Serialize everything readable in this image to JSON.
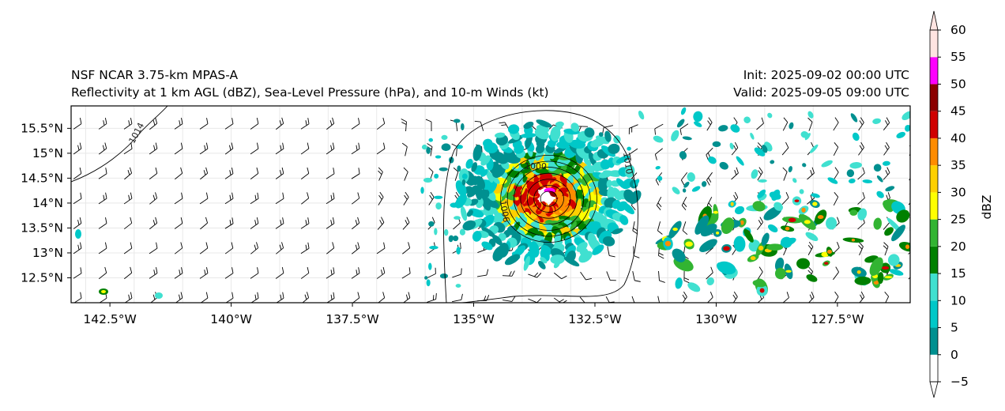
{
  "header": {
    "model_title": "NSF NCAR 3.75-km MPAS-A",
    "fields_title": "Reflectivity at 1 km AGL (dBZ), Sea-Level Pressure (hPa), and 10-m Winds (kt)",
    "init_time": "Init: 2025-09-02 00:00 UTC",
    "valid_time": "Valid: 2025-09-05 09:00 UTC"
  },
  "map": {
    "lon_range": [
      -143.3,
      -126.0
    ],
    "lat_range": [
      12.0,
      15.95
    ],
    "lon_ticks": [
      "142.5°W",
      "140°W",
      "137.5°W",
      "135°W",
      "132.5°W",
      "130°W",
      "127.5°W"
    ],
    "lon_tick_values": [
      -142.5,
      -140,
      -137.5,
      -135,
      -132.5,
      -130,
      -127.5
    ],
    "lat_ticks": [
      "15.5°N",
      "15°N",
      "14.5°N",
      "14°N",
      "13.5°N",
      "13°N",
      "12.5°N"
    ],
    "lat_tick_values": [
      15.5,
      15.0,
      14.5,
      14.0,
      13.5,
      13.0,
      12.5
    ],
    "isobar_labels": [
      "1014",
      "1010",
      "1000",
      "1006"
    ],
    "storm_center": {
      "lon": -133.5,
      "lat": 14.15
    },
    "colors": {
      "coast_grid": "#e8e8e8",
      "barb": "#000000",
      "isobar": "#000000"
    }
  },
  "colorbar": {
    "label": "dBZ",
    "ticks": [
      "60",
      "55",
      "50",
      "45",
      "40",
      "35",
      "30",
      "25",
      "20",
      "15",
      "10",
      "5",
      "0",
      "−5"
    ],
    "levels": [
      -5,
      0,
      5,
      10,
      15,
      20,
      25,
      30,
      35,
      40,
      45,
      50,
      55,
      60
    ],
    "colors": [
      "#ffffff",
      "#009090",
      "#00c8c8",
      "#40e0d0",
      "#008000",
      "#32b432",
      "#ffff00",
      "#ffd000",
      "#ff8c00",
      "#d00000",
      "#8b0000",
      "#ff00ff",
      "#ffe4e1"
    ]
  }
}
